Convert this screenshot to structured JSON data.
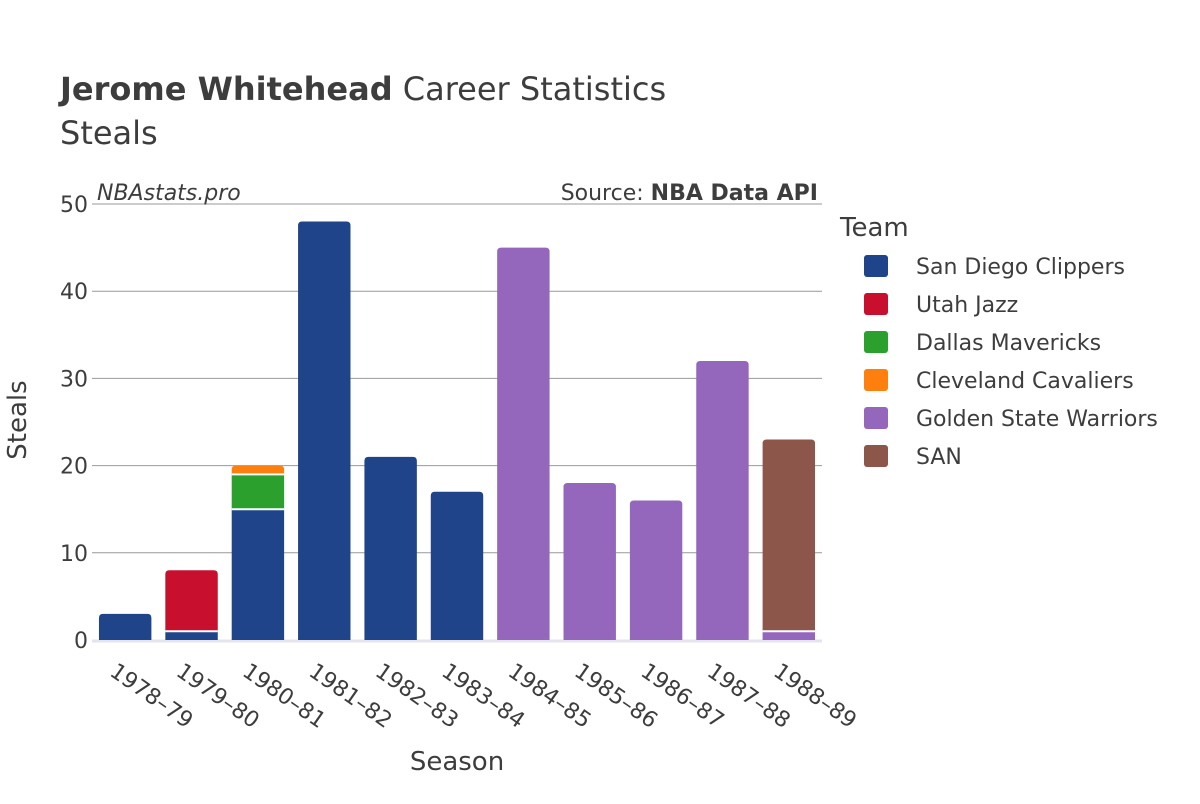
{
  "header": {
    "title_bold": "Jerome Whitehead",
    "title_rest": " Career Statistics",
    "subtitle": "Steals",
    "watermark": "NBAstats.pro",
    "source_prefix": "Source: ",
    "source_bold": "NBA Data API"
  },
  "legend": {
    "title": "Team",
    "placement": "right"
  },
  "colors": {
    "San Diego Clippers": "#1f448a",
    "Utah Jazz": "#c8102e",
    "Dallas Mavericks": "#2ca02c",
    "Cleveland Cavaliers": "#ff7f0e",
    "Golden State Warriors": "#9467bd",
    "SAN": "#8c564b"
  },
  "chart_data": {
    "type": "bar",
    "stacked": true,
    "xlabel": "Season",
    "ylabel": "Steals",
    "ylim": [
      0,
      50
    ],
    "yticks": [
      0,
      10,
      20,
      30,
      40,
      50
    ],
    "grid": true,
    "categories": [
      "1978–79",
      "1979–80",
      "1980–81",
      "1981–82",
      "1982–83",
      "1983–84",
      "1984–85",
      "1985–86",
      "1986–87",
      "1987–88",
      "1988–89"
    ],
    "series": [
      {
        "name": "San Diego Clippers",
        "values": [
          3,
          1,
          15,
          48,
          21,
          17,
          0,
          0,
          0,
          0,
          0
        ]
      },
      {
        "name": "Utah Jazz",
        "values": [
          0,
          7,
          0,
          0,
          0,
          0,
          0,
          0,
          0,
          0,
          0
        ]
      },
      {
        "name": "Dallas Mavericks",
        "values": [
          0,
          0,
          4,
          0,
          0,
          0,
          0,
          0,
          0,
          0,
          0
        ]
      },
      {
        "name": "Cleveland Cavaliers",
        "values": [
          0,
          0,
          1,
          0,
          0,
          0,
          0,
          0,
          0,
          0,
          0
        ]
      },
      {
        "name": "Golden State Warriors",
        "values": [
          0,
          0,
          0,
          0,
          0,
          0,
          45,
          18,
          16,
          32,
          1
        ]
      },
      {
        "name": "SAN",
        "values": [
          0,
          0,
          0,
          0,
          0,
          0,
          0,
          0,
          0,
          0,
          22
        ]
      }
    ]
  }
}
